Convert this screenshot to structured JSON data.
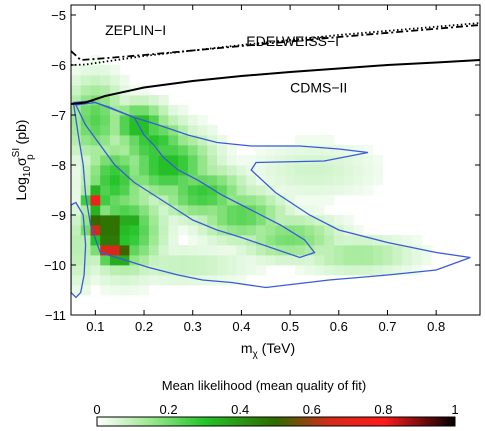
{
  "chart_data": {
    "type": "heatmap",
    "xlabel_main": "m",
    "xlabel_sub": "χ",
    "xlabel_unit": " (TeV)",
    "ylabel": {
      "prefix": "Log",
      "sub1": "10",
      "sigma": "σ",
      "sup": "SI",
      "sub2": "p",
      "unit": " (pb)"
    },
    "xlim": [
      0.05,
      0.89
    ],
    "ylim": [
      -11,
      -4.8
    ],
    "x_ticks": [
      0.1,
      0.2,
      0.3,
      0.4,
      0.5,
      0.6,
      0.7,
      0.8
    ],
    "x_tick_labels": [
      "0.1",
      "0.2",
      "0.3",
      "0.4",
      "0.5",
      "0.6",
      "0.7",
      "0.8"
    ],
    "y_ticks": [
      -11,
      -10,
      -9,
      -8,
      -7,
      -6,
      -5
    ],
    "y_tick_labels": [
      "−11",
      "−10",
      "−9",
      "−8",
      "−7",
      "−6",
      "−5"
    ],
    "limit_curves": [
      {
        "name": "ZEPLIN−I",
        "style": "dotted",
        "points": [
          [
            0.05,
            -6.0
          ],
          [
            0.08,
            -5.99
          ],
          [
            0.2,
            -5.82
          ],
          [
            0.4,
            -5.6
          ],
          [
            0.6,
            -5.4
          ],
          [
            0.89,
            -5.16
          ]
        ]
      },
      {
        "name": "EDELWEISS−I",
        "style": "dashdot",
        "points": [
          [
            0.05,
            -5.72
          ],
          [
            0.07,
            -5.9
          ],
          [
            0.1,
            -5.88
          ],
          [
            0.2,
            -5.8
          ],
          [
            0.4,
            -5.62
          ],
          [
            0.6,
            -5.44
          ],
          [
            0.89,
            -5.2
          ]
        ]
      },
      {
        "name": "CDMS−II",
        "style": "solid",
        "points": [
          [
            0.05,
            -6.78
          ],
          [
            0.08,
            -6.75
          ],
          [
            0.12,
            -6.62
          ],
          [
            0.2,
            -6.45
          ],
          [
            0.3,
            -6.32
          ],
          [
            0.4,
            -6.22
          ],
          [
            0.5,
            -6.14
          ],
          [
            0.6,
            -6.07
          ],
          [
            0.7,
            -6.0
          ],
          [
            0.8,
            -5.95
          ],
          [
            0.89,
            -5.9
          ]
        ]
      }
    ],
    "curve_labels": [
      {
        "text": "ZEPLIN−I",
        "x": 0.12,
        "y": -5.4
      },
      {
        "text": "EDELWEISS−I",
        "x": 0.41,
        "y": -5.62
      },
      {
        "text": "CDMS−II",
        "x": 0.5,
        "y": -6.55
      }
    ],
    "contours": [
      {
        "name": "inner",
        "points": [
          [
            0.06,
            -6.8
          ],
          [
            0.1,
            -6.75
          ],
          [
            0.14,
            -6.9
          ],
          [
            0.18,
            -7.05
          ],
          [
            0.2,
            -7.4
          ],
          [
            0.22,
            -7.6
          ],
          [
            0.24,
            -7.85
          ],
          [
            0.27,
            -8.1
          ],
          [
            0.31,
            -8.3
          ],
          [
            0.36,
            -8.6
          ],
          [
            0.42,
            -8.9
          ],
          [
            0.48,
            -9.2
          ],
          [
            0.53,
            -9.5
          ],
          [
            0.55,
            -9.75
          ],
          [
            0.52,
            -9.85
          ],
          [
            0.46,
            -9.65
          ],
          [
            0.4,
            -9.45
          ],
          [
            0.35,
            -9.3
          ],
          [
            0.3,
            -9.1
          ],
          [
            0.26,
            -8.85
          ],
          [
            0.22,
            -8.6
          ],
          [
            0.18,
            -8.35
          ],
          [
            0.14,
            -8.0
          ],
          [
            0.11,
            -7.6
          ],
          [
            0.08,
            -7.2
          ],
          [
            0.06,
            -6.8
          ]
        ]
      },
      {
        "name": "outer",
        "points": [
          [
            0.055,
            -6.75
          ],
          [
            0.09,
            -6.72
          ],
          [
            0.13,
            -6.85
          ],
          [
            0.18,
            -7.05
          ],
          [
            0.23,
            -7.2
          ],
          [
            0.29,
            -7.4
          ],
          [
            0.35,
            -7.55
          ],
          [
            0.42,
            -7.62
          ],
          [
            0.52,
            -7.62
          ],
          [
            0.6,
            -7.68
          ],
          [
            0.66,
            -7.75
          ],
          [
            0.57,
            -7.92
          ],
          [
            0.43,
            -7.95
          ],
          [
            0.42,
            -8.1
          ],
          [
            0.47,
            -8.55
          ],
          [
            0.54,
            -9.0
          ],
          [
            0.6,
            -9.3
          ],
          [
            0.7,
            -9.55
          ],
          [
            0.8,
            -9.75
          ],
          [
            0.87,
            -9.85
          ],
          [
            0.8,
            -10.1
          ],
          [
            0.7,
            -10.2
          ],
          [
            0.58,
            -10.3
          ],
          [
            0.45,
            -10.45
          ],
          [
            0.38,
            -10.35
          ],
          [
            0.32,
            -10.3
          ],
          [
            0.27,
            -10.2
          ],
          [
            0.21,
            -10.05
          ],
          [
            0.16,
            -9.9
          ],
          [
            0.11,
            -9.75
          ],
          [
            0.09,
            -9.2
          ],
          [
            0.08,
            -8.6
          ],
          [
            0.075,
            -8.0
          ],
          [
            0.065,
            -7.4
          ],
          [
            0.055,
            -6.75
          ]
        ]
      },
      {
        "name": "island",
        "points": [
          [
            0.05,
            -8.8
          ],
          [
            0.06,
            -8.75
          ],
          [
            0.075,
            -9.0
          ],
          [
            0.08,
            -9.6
          ],
          [
            0.077,
            -10.2
          ],
          [
            0.07,
            -10.55
          ],
          [
            0.06,
            -10.65
          ],
          [
            0.05,
            -10.55
          ]
        ]
      }
    ],
    "likelihood_blobs": [
      {
        "x": 0.1,
        "y": -7.1,
        "sx": 0.04,
        "sy": 0.55,
        "v": 0.24
      },
      {
        "x": 0.19,
        "y": -7.2,
        "sx": 0.04,
        "sy": 0.3,
        "v": 0.34
      },
      {
        "x": 0.22,
        "y": -7.55,
        "sx": 0.05,
        "sy": 0.35,
        "v": 0.3
      },
      {
        "x": 0.25,
        "y": -8.0,
        "sx": 0.06,
        "sy": 0.45,
        "v": 0.32
      },
      {
        "x": 0.32,
        "y": -8.55,
        "sx": 0.06,
        "sy": 0.35,
        "v": 0.28
      },
      {
        "x": 0.4,
        "y": -9.0,
        "sx": 0.06,
        "sy": 0.35,
        "v": 0.24
      },
      {
        "x": 0.5,
        "y": -9.45,
        "sx": 0.07,
        "sy": 0.3,
        "v": 0.2
      },
      {
        "x": 0.64,
        "y": -9.8,
        "sx": 0.08,
        "sy": 0.25,
        "v": 0.14
      },
      {
        "x": 0.55,
        "y": -8.1,
        "sx": 0.09,
        "sy": 0.4,
        "v": 0.07
      },
      {
        "x": 0.14,
        "y": -8.3,
        "sx": 0.04,
        "sy": 0.5,
        "v": 0.3
      },
      {
        "x": 0.16,
        "y": -9.3,
        "sx": 0.05,
        "sy": 0.55,
        "v": 0.32
      },
      {
        "x": 0.1,
        "y": -8.7,
        "sx": 0.014,
        "sy": 0.16,
        "v": 0.74
      },
      {
        "x": 0.105,
        "y": -9.25,
        "sx": 0.016,
        "sy": 0.2,
        "v": 0.7
      },
      {
        "x": 0.13,
        "y": -9.2,
        "sx": 0.02,
        "sy": 0.16,
        "v": 0.66
      },
      {
        "x": 0.13,
        "y": -9.65,
        "sx": 0.018,
        "sy": 0.17,
        "v": 0.8
      },
      {
        "x": 0.15,
        "y": -9.75,
        "sx": 0.02,
        "sy": 0.16,
        "v": 0.62
      },
      {
        "x": 0.17,
        "y": -9.1,
        "sx": 0.012,
        "sy": 0.12,
        "v": 0.5
      },
      {
        "x": 0.07,
        "y": -9.6,
        "sx": 0.02,
        "sy": 0.6,
        "v": 0.12
      },
      {
        "x": 0.28,
        "y": -10.0,
        "sx": 0.1,
        "sy": 0.25,
        "v": 0.09
      }
    ],
    "colorbar": {
      "title": "Mean likelihood (mean quality of fit)",
      "range": [
        0,
        1
      ],
      "ticks": [
        0,
        0.2,
        0.4,
        0.6,
        0.8,
        1
      ],
      "tick_labels": [
        "0",
        "0.2",
        "0.4",
        "0.6",
        "0.8",
        "1"
      ],
      "colors": [
        "#ffffff",
        "#9be88f",
        "#25c42a",
        "#2f6a00",
        "#d52a1a",
        "#ff1b1b",
        "#000000"
      ]
    },
    "line_color": "#000000",
    "contour_color": "#3a5bd9"
  }
}
